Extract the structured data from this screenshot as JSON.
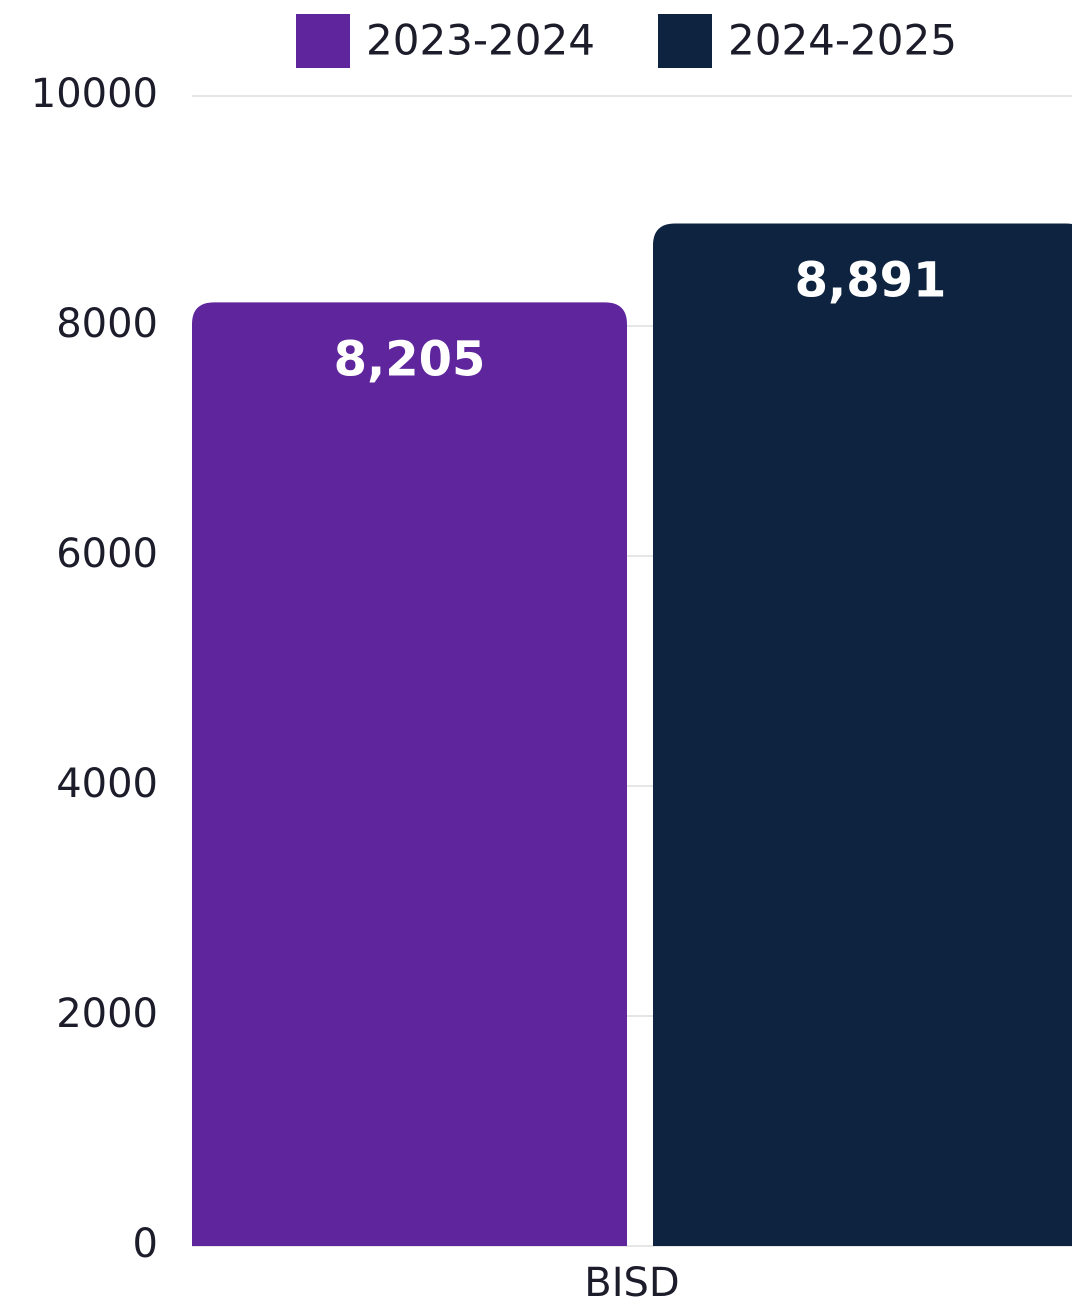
{
  "chart_data": {
    "type": "bar",
    "categories": [
      "BISD"
    ],
    "series": [
      {
        "name": "2023-2024",
        "color": "#5e259d",
        "values": [
          8205
        ],
        "value_labels": [
          "8,205"
        ]
      },
      {
        "name": "2024-2025",
        "color": "#0d2340",
        "values": [
          8891
        ],
        "value_labels": [
          "8,891"
        ]
      }
    ],
    "ylim": [
      0,
      10000
    ],
    "yticks": [
      0,
      2000,
      4000,
      6000,
      8000,
      10000
    ],
    "grid": true,
    "legend": "top"
  }
}
